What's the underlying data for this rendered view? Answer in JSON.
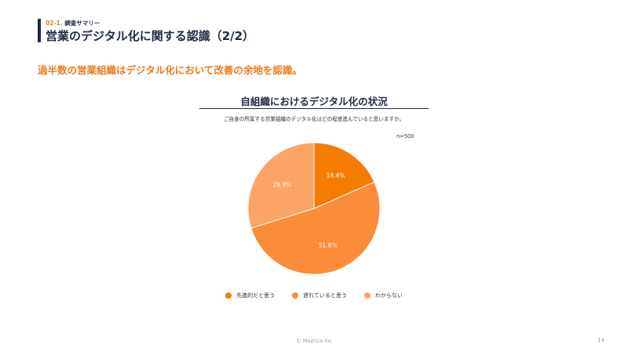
{
  "header": {
    "section_number": "02-1.",
    "section_name": "調査サマリー",
    "title": "営業のデジタル化に関する認識（2/2）"
  },
  "headline": "過半数の営業組織はデジタル化において改善の余地を認識。",
  "chart_data": {
    "type": "pie",
    "title": "自組織におけるデジタル化の状況",
    "subtitle": "ご自身の所属する営業組織のデジタル化はどの程度進んでいると思いますか。",
    "sample_size": "n=500",
    "categories": [
      "先進的だと思う",
      "遅れていると思う",
      "わからない"
    ],
    "values": [
      18.4,
      51.8,
      29.8
    ],
    "value_labels": [
      "18.4%",
      "51.8%",
      "29.8%"
    ],
    "colors": [
      "#f57c00",
      "#fb8c3a",
      "#fca466"
    ],
    "start_angle_deg": 0,
    "direction": "clockwise",
    "legend_position": "bottom"
  },
  "footer": {
    "copyright": "© Mazrica Inc",
    "page_number": "14"
  }
}
